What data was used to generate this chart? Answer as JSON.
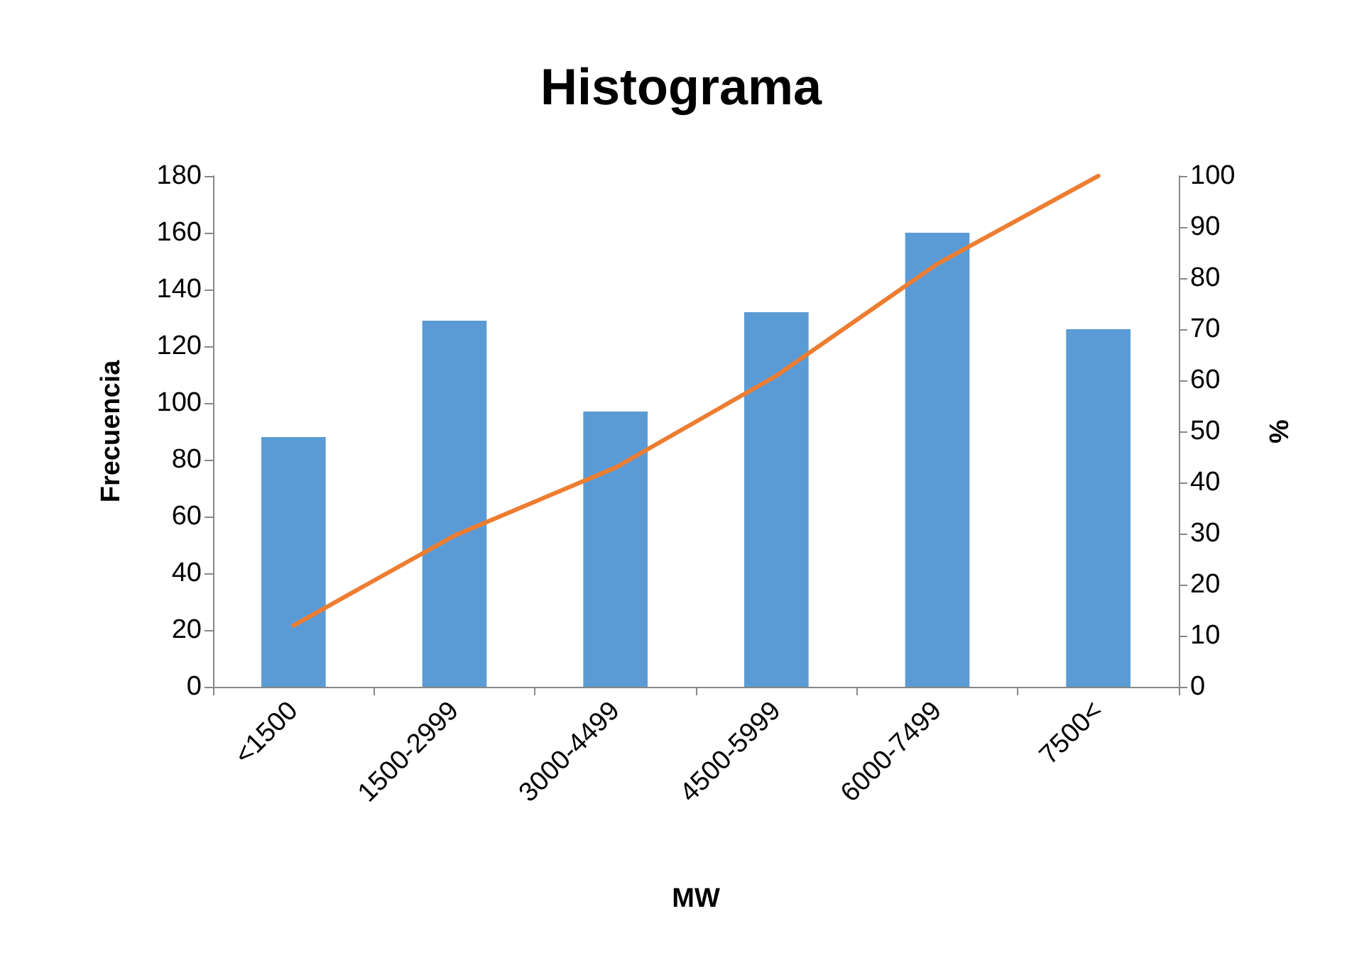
{
  "chart_data": {
    "type": "bar",
    "title": "Histograma",
    "xlabel": "MW",
    "ylabel": "Frecuencia",
    "y2label": "%",
    "categories": [
      "<1500",
      "1500-2999",
      "3000-4499",
      "4500-5999",
      "6000-7499",
      "7500<"
    ],
    "series": [
      {
        "color": "#5b9bd5",
        "values": [
          88,
          129,
          97,
          132,
          160,
          126
        ]
      },
      {
        "type": "line",
        "axis": "y2",
        "color": "#ed7d31",
        "values": [
          12,
          29.6,
          42.9,
          60.9,
          82.8,
          100
        ]
      }
    ],
    "ylim": [
      0,
      180
    ],
    "yticks": [
      0,
      20,
      40,
      60,
      80,
      100,
      120,
      140,
      160,
      180
    ],
    "y2lim": [
      0,
      100
    ],
    "y2ticks": [
      0,
      10,
      20,
      30,
      40,
      50,
      60,
      70,
      80,
      90,
      100
    ],
    "grid": false,
    "marker": "none",
    "line_style": "solid"
  }
}
